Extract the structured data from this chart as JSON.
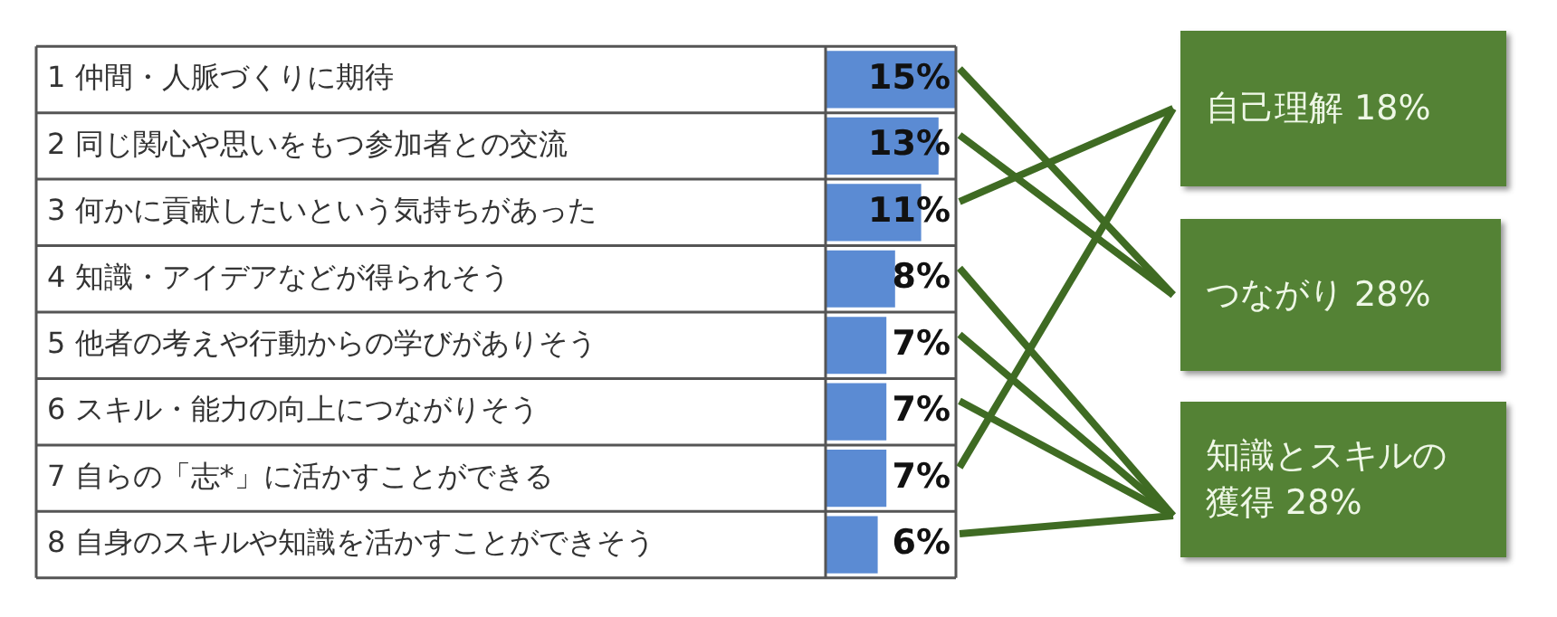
{
  "chart_data": {
    "type": "bar",
    "orientation": "horizontal",
    "categories": [
      "1 仲間・人脈づくりに期待",
      "2 同じ関心や思いをもつ参加者との交流",
      "3 何かに貢献したいという気持ちがあった",
      "4 知識・アイデアなどが得られそう",
      "5 他者の考えや行動からの学びがありそう",
      "6 スキル・能力の向上につながりそう",
      "7 自らの「志*」に活かすことができる",
      "8 自身のスキルや知識を活かすことができそう"
    ],
    "values": [
      15,
      13,
      11,
      8,
      7,
      7,
      7,
      6
    ],
    "value_labels": [
      "15%",
      "13%",
      "11%",
      "8%",
      "7%",
      "7%",
      "7%",
      "6%"
    ],
    "color": "#5b8bd3",
    "xlim": [
      0,
      15
    ],
    "grid": "y",
    "annotations": [
      "自己理解 18%",
      "つながり 28%",
      "知識とスキルの獲得 28%"
    ]
  }
}
